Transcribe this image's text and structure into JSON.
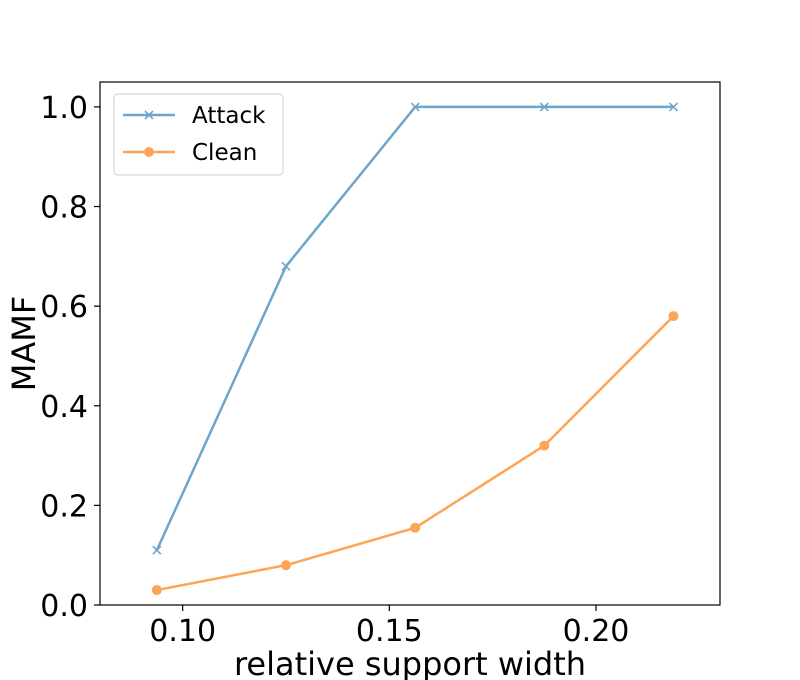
{
  "chart_data": {
    "type": "line",
    "xlabel": "relative support width",
    "ylabel": "MAMF",
    "xlim": [
      0.08,
      0.23
    ],
    "ylim": [
      0.0,
      1.05
    ],
    "xticks": [
      0.1,
      0.15,
      0.2
    ],
    "xtick_labels": [
      "0.10",
      "0.15",
      "0.20"
    ],
    "yticks": [
      0.0,
      0.2,
      0.4,
      0.6,
      0.8,
      1.0
    ],
    "ytick_labels": [
      "0.0",
      "0.2",
      "0.4",
      "0.6",
      "0.8",
      "1.0"
    ],
    "x": [
      0.09375,
      0.125,
      0.15625,
      0.1875,
      0.21875
    ],
    "series": [
      {
        "name": "Attack",
        "values": [
          0.11,
          0.68,
          1.0,
          1.0,
          1.0
        ],
        "color": "#6ea5cc",
        "marker": "x"
      },
      {
        "name": "Clean",
        "values": [
          0.03,
          0.08,
          0.155,
          0.32,
          0.58
        ],
        "color": "#fda456",
        "marker": "o"
      }
    ],
    "legend": {
      "position": "top-left"
    },
    "grid": false
  }
}
